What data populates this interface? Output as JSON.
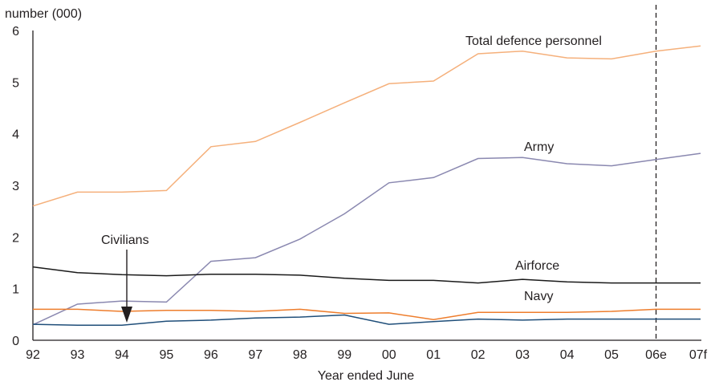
{
  "chart_data": {
    "type": "line",
    "title": "",
    "ylabel": "number (000)",
    "xlabel": "Year ended June",
    "categories": [
      "92",
      "93",
      "94",
      "95",
      "96",
      "97",
      "98",
      "99",
      "00",
      "01",
      "02",
      "03",
      "04",
      "05",
      "06e",
      "07f"
    ],
    "ylim": [
      0,
      6
    ],
    "yticks": [
      "0",
      "1",
      "2",
      "3",
      "4",
      "5",
      "6"
    ],
    "grid": false,
    "legend": "none",
    "estimate_divider_after": "05",
    "series": [
      {
        "name": "Total defence personnel",
        "color": "#f5b07b",
        "values": [
          2.6,
          2.87,
          2.87,
          2.9,
          3.75,
          3.85,
          4.22,
          4.6,
          4.97,
          5.02,
          5.55,
          5.6,
          5.47,
          5.45,
          5.6,
          5.7
        ]
      },
      {
        "name": "Army",
        "color": "#8a88b0",
        "values": [
          0.3,
          0.7,
          0.76,
          0.74,
          1.53,
          1.6,
          1.96,
          2.45,
          3.05,
          3.15,
          3.52,
          3.54,
          3.42,
          3.38,
          3.5,
          3.62
        ]
      },
      {
        "name": "Airforce",
        "color": "#1a1a1a",
        "values": [
          1.42,
          1.31,
          1.27,
          1.25,
          1.28,
          1.28,
          1.26,
          1.2,
          1.16,
          1.16,
          1.11,
          1.18,
          1.13,
          1.11,
          1.11,
          1.11
        ]
      },
      {
        "name": "Navy",
        "color": "#ee7d2c",
        "values": [
          0.6,
          0.6,
          0.56,
          0.58,
          0.58,
          0.56,
          0.6,
          0.52,
          0.53,
          0.4,
          0.54,
          0.54,
          0.54,
          0.56,
          0.6,
          0.6
        ]
      },
      {
        "name": "Civilians",
        "color": "#1f4e79",
        "values": [
          0.31,
          0.29,
          0.29,
          0.37,
          0.39,
          0.43,
          0.45,
          0.49,
          0.31,
          0.36,
          0.41,
          0.39,
          0.41,
          0.41,
          0.41,
          0.41
        ]
      }
    ],
    "annotations": [
      {
        "text": "Total defence personnel"
      },
      {
        "text": "Army"
      },
      {
        "text": "Airforce"
      },
      {
        "text": "Navy"
      },
      {
        "text": "Civilians"
      }
    ]
  }
}
